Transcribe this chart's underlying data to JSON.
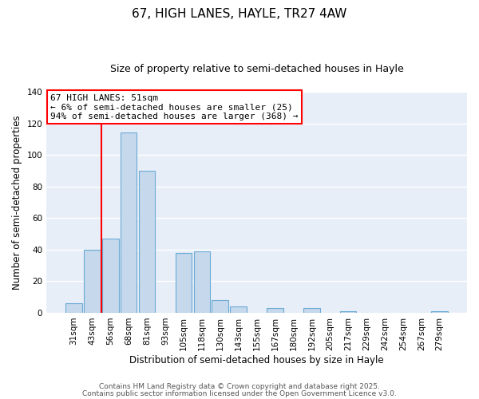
{
  "title": "67, HIGH LANES, HAYLE, TR27 4AW",
  "subtitle": "Size of property relative to semi-detached houses in Hayle",
  "xlabel": "Distribution of semi-detached houses by size in Hayle",
  "ylabel": "Number of semi-detached properties",
  "bar_color": "#c5d8ec",
  "bar_edge_color": "#6aaad4",
  "background_color": "#e8eef8",
  "grid_color": "white",
  "categories": [
    "31sqm",
    "43sqm",
    "56sqm",
    "68sqm",
    "81sqm",
    "93sqm",
    "105sqm",
    "118sqm",
    "130sqm",
    "143sqm",
    "155sqm",
    "167sqm",
    "180sqm",
    "192sqm",
    "205sqm",
    "217sqm",
    "229sqm",
    "242sqm",
    "254sqm",
    "267sqm",
    "279sqm"
  ],
  "values": [
    6,
    40,
    47,
    114,
    90,
    0,
    38,
    39,
    8,
    4,
    0,
    3,
    0,
    3,
    0,
    1,
    0,
    0,
    0,
    0,
    1
  ],
  "ylim": [
    0,
    140
  ],
  "yticks": [
    0,
    20,
    40,
    60,
    80,
    100,
    120,
    140
  ],
  "annotation_title": "67 HIGH LANES: 51sqm",
  "annotation_line1": "← 6% of semi-detached houses are smaller (25)",
  "annotation_line2": "94% of semi-detached houses are larger (368) →",
  "red_line_bin_index": 2,
  "footer1": "Contains HM Land Registry data © Crown copyright and database right 2025.",
  "footer2": "Contains public sector information licensed under the Open Government Licence v3.0.",
  "title_fontsize": 11,
  "subtitle_fontsize": 9,
  "tick_fontsize": 7.5,
  "ylabel_fontsize": 8.5,
  "xlabel_fontsize": 8.5,
  "annotation_fontsize": 8,
  "footer_fontsize": 6.5
}
